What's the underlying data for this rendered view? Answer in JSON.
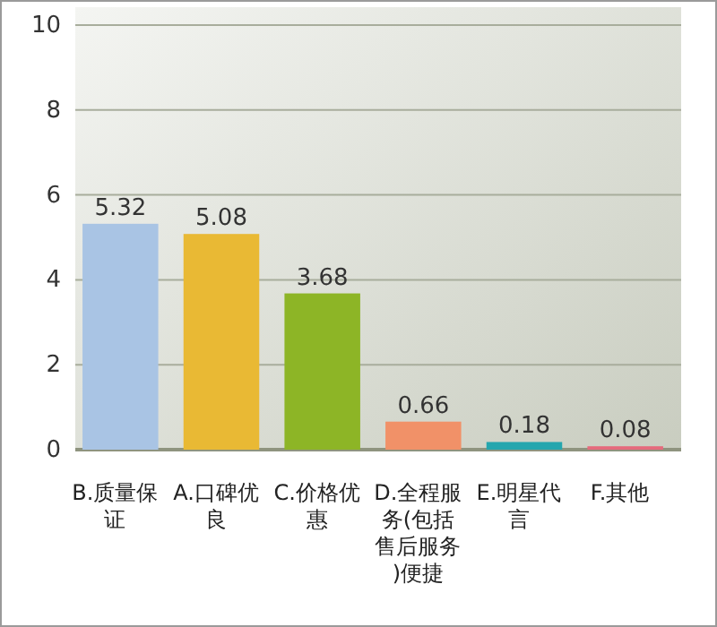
{
  "chart_data": {
    "type": "bar",
    "categories": [
      "B.质量保证",
      "A.口碑优良",
      "C.价格优惠",
      "D.全程服务(包括售后服务)便捷",
      "E.明星代言",
      "F.其他"
    ],
    "values": [
      5.32,
      5.08,
      3.68,
      0.66,
      0.18,
      0.08
    ],
    "colors": [
      "#a9c4e4",
      "#e9b934",
      "#8db526",
      "#f19168",
      "#25a6ae",
      "#e56a7c"
    ],
    "ylim": [
      0,
      10
    ],
    "yticks": [
      0,
      2,
      4,
      6,
      8,
      10
    ],
    "grid": "y",
    "data_labels": true
  }
}
